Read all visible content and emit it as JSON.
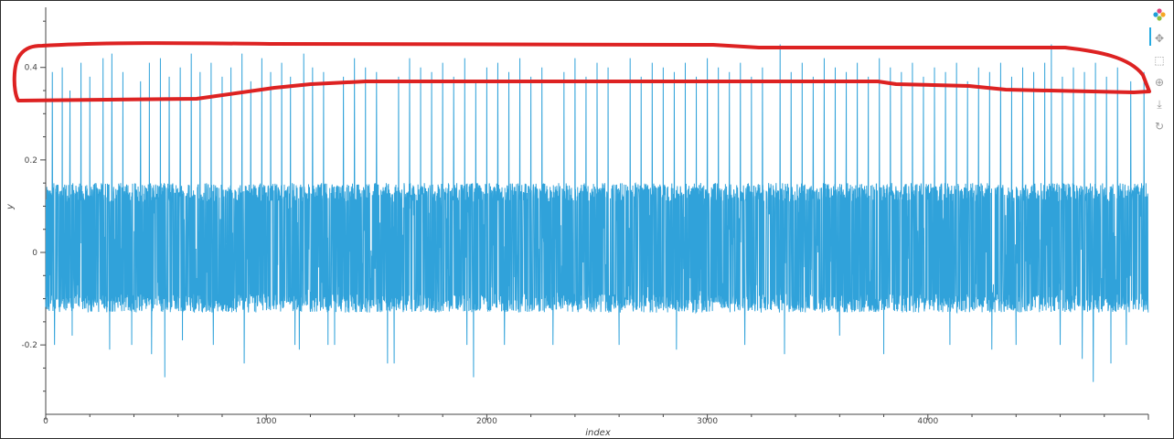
{
  "chart_data": {
    "type": "line",
    "title": "",
    "xlabel": "index",
    "ylabel": "y",
    "xlim": [
      0,
      5000
    ],
    "ylim": [
      -0.35,
      0.53
    ],
    "x_ticks": [
      0,
      1000,
      2000,
      3000,
      4000
    ],
    "y_ticks": [
      -0.2,
      0,
      0.2,
      0.4
    ],
    "x_tick_labels": [
      "0",
      "1000",
      "2000",
      "3000",
      "4000"
    ],
    "y_tick_labels": [
      "-0.2",
      "0",
      "0.2",
      "0.4"
    ],
    "grid": false,
    "series": [
      {
        "color": "#30a2da",
        "n_points": 5000,
        "band_upper": 0.15,
        "band_lower": -0.13,
        "upper_spikes": [
          [
            30,
            0.39
          ],
          [
            75,
            0.4
          ],
          [
            110,
            0.35
          ],
          [
            160,
            0.41
          ],
          [
            200,
            0.38
          ],
          [
            260,
            0.42
          ],
          [
            300,
            0.43
          ],
          [
            350,
            0.39
          ],
          [
            390,
            0.42
          ],
          [
            430,
            0.37
          ],
          [
            470,
            0.41
          ],
          [
            520,
            0.42
          ],
          [
            560,
            0.38
          ],
          [
            610,
            0.4
          ],
          [
            660,
            0.43
          ],
          [
            700,
            0.39
          ],
          [
            750,
            0.41
          ],
          [
            800,
            0.38
          ],
          [
            840,
            0.4
          ],
          [
            890,
            0.43
          ],
          [
            930,
            0.37
          ],
          [
            980,
            0.42
          ],
          [
            1020,
            0.39
          ],
          [
            1070,
            0.41
          ],
          [
            1110,
            0.38
          ],
          [
            1170,
            0.43
          ],
          [
            1210,
            0.4
          ],
          [
            1260,
            0.39
          ],
          [
            1310,
            0.41
          ],
          [
            1350,
            0.38
          ],
          [
            1400,
            0.42
          ],
          [
            1450,
            0.4
          ],
          [
            1500,
            0.39
          ],
          [
            1550,
            0.41
          ],
          [
            1600,
            0.38
          ],
          [
            1650,
            0.42
          ],
          [
            1700,
            0.4
          ],
          [
            1750,
            0.39
          ],
          [
            1800,
            0.41
          ],
          [
            1850,
            0.38
          ],
          [
            1900,
            0.42
          ],
          [
            1950,
            0.37
          ],
          [
            2000,
            0.4
          ],
          [
            2050,
            0.41
          ],
          [
            2100,
            0.39
          ],
          [
            2150,
            0.42
          ],
          [
            2200,
            0.38
          ],
          [
            2250,
            0.4
          ],
          [
            2300,
            0.41
          ],
          [
            2350,
            0.39
          ],
          [
            2400,
            0.42
          ],
          [
            2450,
            0.38
          ],
          [
            2500,
            0.41
          ],
          [
            2550,
            0.4
          ],
          [
            2600,
            0.39
          ],
          [
            2650,
            0.42
          ],
          [
            2700,
            0.38
          ],
          [
            2750,
            0.41
          ],
          [
            2800,
            0.4
          ],
          [
            2850,
            0.39
          ],
          [
            2900,
            0.41
          ],
          [
            2950,
            0.38
          ],
          [
            3000,
            0.42
          ],
          [
            3050,
            0.4
          ],
          [
            3100,
            0.39
          ],
          [
            3150,
            0.41
          ],
          [
            3200,
            0.38
          ],
          [
            3250,
            0.4
          ],
          [
            3330,
            0.45
          ],
          [
            3380,
            0.39
          ],
          [
            3430,
            0.41
          ],
          [
            3480,
            0.38
          ],
          [
            3530,
            0.42
          ],
          [
            3580,
            0.4
          ],
          [
            3630,
            0.39
          ],
          [
            3680,
            0.41
          ],
          [
            3730,
            0.38
          ],
          [
            3780,
            0.42
          ],
          [
            3830,
            0.4
          ],
          [
            3880,
            0.39
          ],
          [
            3930,
            0.41
          ],
          [
            3980,
            0.38
          ],
          [
            4030,
            0.4
          ],
          [
            4080,
            0.39
          ],
          [
            4130,
            0.41
          ],
          [
            4180,
            0.37
          ],
          [
            4230,
            0.4
          ],
          [
            4280,
            0.39
          ],
          [
            4330,
            0.41
          ],
          [
            4380,
            0.38
          ],
          [
            4430,
            0.4
          ],
          [
            4480,
            0.39
          ],
          [
            4530,
            0.41
          ],
          [
            4560,
            0.45
          ],
          [
            4610,
            0.38
          ],
          [
            4660,
            0.4
          ],
          [
            4710,
            0.39
          ],
          [
            4760,
            0.41
          ],
          [
            4810,
            0.38
          ],
          [
            4860,
            0.4
          ],
          [
            4920,
            0.37
          ],
          [
            4980,
            0.39
          ]
        ],
        "lower_spikes": [
          [
            40,
            -0.2
          ],
          [
            120,
            -0.18
          ],
          [
            290,
            -0.21
          ],
          [
            390,
            -0.2
          ],
          [
            480,
            -0.22
          ],
          [
            540,
            -0.27
          ],
          [
            620,
            -0.19
          ],
          [
            760,
            -0.2
          ],
          [
            900,
            -0.24
          ],
          [
            1130,
            -0.2
          ],
          [
            1150,
            -0.21
          ],
          [
            1280,
            -0.2
          ],
          [
            1310,
            -0.2
          ],
          [
            1550,
            -0.24
          ],
          [
            1580,
            -0.24
          ],
          [
            1910,
            -0.2
          ],
          [
            1940,
            -0.27
          ],
          [
            2080,
            -0.2
          ],
          [
            2300,
            -0.2
          ],
          [
            2600,
            -0.2
          ],
          [
            2860,
            -0.21
          ],
          [
            3170,
            -0.2
          ],
          [
            3350,
            -0.22
          ],
          [
            3600,
            -0.18
          ],
          [
            3800,
            -0.22
          ],
          [
            4100,
            -0.2
          ],
          [
            4290,
            -0.21
          ],
          [
            4400,
            -0.2
          ],
          [
            4600,
            -0.2
          ],
          [
            4700,
            -0.23
          ],
          [
            4750,
            -0.28
          ],
          [
            4830,
            -0.24
          ],
          [
            4900,
            -0.2
          ]
        ]
      }
    ]
  },
  "annotation": {
    "color": "#dd2222"
  },
  "toolbar": {
    "items": [
      {
        "name": "bokeh-logo-icon",
        "glyph": ""
      },
      {
        "name": "pan-tool-icon",
        "glyph": "✥"
      },
      {
        "name": "box-zoom-tool-icon",
        "glyph": "⬚"
      },
      {
        "name": "wheel-zoom-tool-icon",
        "glyph": "⊕"
      },
      {
        "name": "save-tool-icon",
        "glyph": "⤓"
      },
      {
        "name": "reset-tool-icon",
        "glyph": "↻"
      }
    ]
  }
}
